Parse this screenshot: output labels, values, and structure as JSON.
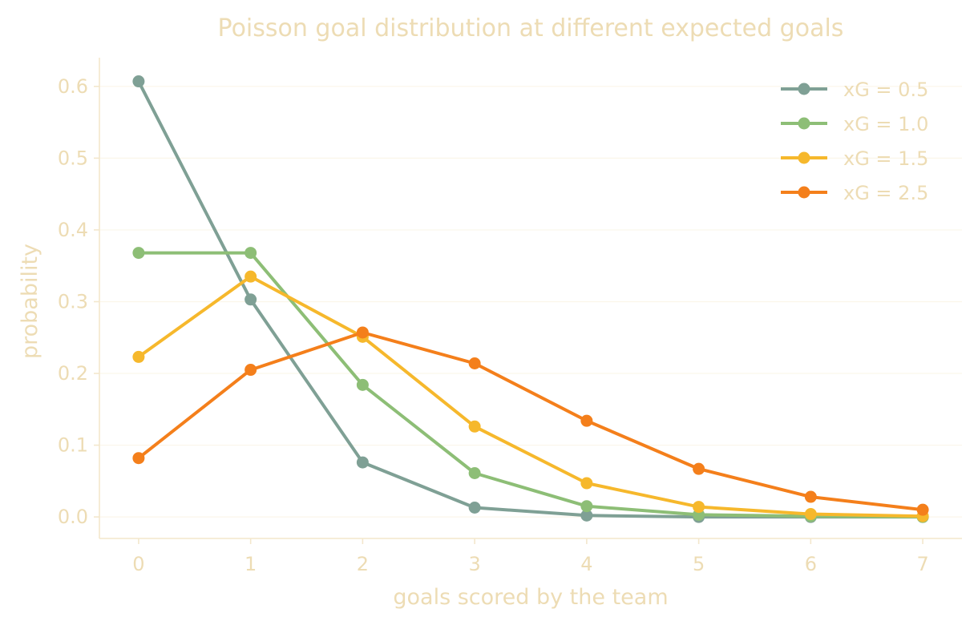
{
  "chart_data": {
    "type": "line",
    "title": "Poisson goal distribution at different expected goals",
    "xlabel": "goals scored by the team",
    "ylabel": "probability",
    "x": [
      0,
      1,
      2,
      3,
      4,
      5,
      6,
      7
    ],
    "xticks": [
      "0",
      "1",
      "2",
      "3",
      "4",
      "5",
      "6",
      "7"
    ],
    "yticks": [
      "0.0",
      "0.1",
      "0.2",
      "0.3",
      "0.4",
      "0.5",
      "0.6"
    ],
    "xlim": [
      -0.35,
      7.35
    ],
    "ylim": [
      -0.03,
      0.64
    ],
    "grid": "horizontal",
    "legend_position": "top-right",
    "series": [
      {
        "name": "xG = 0.5",
        "color": "#7fa095",
        "values": [
          0.607,
          0.303,
          0.076,
          0.013,
          0.002,
          0.0,
          0.0,
          0.0
        ]
      },
      {
        "name": "xG = 1.0",
        "color": "#8dbe76",
        "values": [
          0.368,
          0.368,
          0.184,
          0.061,
          0.015,
          0.003,
          0.001,
          0.0
        ]
      },
      {
        "name": "xG = 1.5",
        "color": "#f6b82c",
        "values": [
          0.223,
          0.335,
          0.251,
          0.126,
          0.047,
          0.014,
          0.004,
          0.001
        ]
      },
      {
        "name": "xG = 2.5",
        "color": "#f47f1b",
        "values": [
          0.082,
          0.205,
          0.257,
          0.214,
          0.134,
          0.067,
          0.028,
          0.01
        ]
      }
    ]
  }
}
